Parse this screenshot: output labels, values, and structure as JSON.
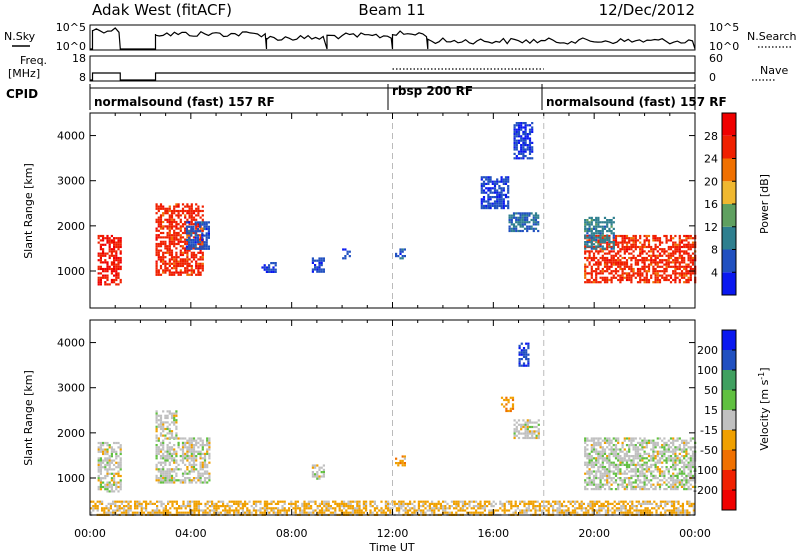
{
  "header": {
    "station": "Adak West (fitACF)",
    "beam": "Beam 11",
    "date": "12/Dec/2012"
  },
  "status_panels": {
    "nsky_label": "N.Sky",
    "nsky_ticks": [
      "10^5",
      "10^0"
    ],
    "nsearch_label": "N.Search",
    "nsearch_ticks": [
      "10^5",
      "10^0"
    ],
    "freq_label": [
      "Freq.",
      "[MHz]"
    ],
    "freq_ticks": [
      "18",
      "8"
    ],
    "nave_label": "Nave",
    "nave_ticks": [
      "60",
      "0"
    ],
    "cpid_label": "CPID",
    "cpid_segments": [
      {
        "label": "normalsound (fast) 157 RF",
        "start_hour": 0,
        "end_hour": 12
      },
      {
        "label": "rbsp 200 RF",
        "start_hour": 12,
        "end_hour": 18
      },
      {
        "label": "normalsound (fast) 157 RF",
        "start_hour": 18,
        "end_hour": 24
      }
    ]
  },
  "chart_data": [
    {
      "type": "heatmap",
      "name": "power-panel",
      "ylabel": "Slant Range [km]",
      "xlabel": "",
      "xlim": [
        0,
        24
      ],
      "ylim": [
        180,
        4500
      ],
      "yticks": [
        "1000",
        "2000",
        "3000",
        "4000"
      ],
      "colorbar": {
        "label": "Power [dB]",
        "ticks": [
          "4",
          "8",
          "12",
          "16",
          "20",
          "24",
          "28"
        ],
        "range": [
          0,
          32
        ],
        "colors": [
          "#0a18f0",
          "#2050c0",
          "#2e7f8f",
          "#5fa060",
          "#f0b830",
          "#f07000",
          "#f02000",
          "#f00000"
        ]
      },
      "regions": [
        {
          "t0": 0.3,
          "t1": 1.2,
          "r0": 700,
          "r1": 1800,
          "value": 28
        },
        {
          "t0": 2.6,
          "t1": 4.5,
          "r0": 900,
          "r1": 2500,
          "value": 26
        },
        {
          "t0": 3.8,
          "t1": 4.7,
          "r0": 1500,
          "r1": 2100,
          "value": 6
        },
        {
          "t0": 6.8,
          "t1": 7.4,
          "r0": 1000,
          "r1": 1200,
          "value": 5
        },
        {
          "t0": 8.8,
          "t1": 9.3,
          "r0": 1000,
          "r1": 1300,
          "value": 5
        },
        {
          "t0": 10.0,
          "t1": 10.3,
          "r0": 1300,
          "r1": 1500,
          "value": 5
        },
        {
          "t0": 12.1,
          "t1": 12.5,
          "r0": 1300,
          "r1": 1500,
          "value": 6
        },
        {
          "t0": 15.5,
          "t1": 16.6,
          "r0": 2400,
          "r1": 3100,
          "value": 5
        },
        {
          "t0": 16.6,
          "t1": 17.8,
          "r0": 1900,
          "r1": 2300,
          "value": 8
        },
        {
          "t0": 16.8,
          "t1": 17.5,
          "r0": 3500,
          "r1": 4300,
          "value": 4
        },
        {
          "t0": 19.6,
          "t1": 24.0,
          "r0": 750,
          "r1": 1800,
          "value": 26
        },
        {
          "t0": 19.6,
          "t1": 20.8,
          "r0": 1500,
          "r1": 2200,
          "value": 10
        }
      ]
    },
    {
      "type": "heatmap",
      "name": "velocity-panel",
      "ylabel": "Slant Range [km]",
      "xlabel": "Time UT",
      "xlim": [
        0,
        24
      ],
      "ylim": [
        180,
        4500
      ],
      "xticks": [
        "00:00",
        "04:00",
        "08:00",
        "12:00",
        "16:00",
        "20:00",
        "00:00"
      ],
      "yticks": [
        "1000",
        "2000",
        "3000",
        "4000"
      ],
      "colorbar": {
        "label": "Velocity [m s^-1]",
        "ticks": [
          "200",
          "100",
          "50",
          "15",
          "-15",
          "-50",
          "-100",
          "-200"
        ],
        "range": [
          -250,
          250
        ],
        "colors": [
          "#f00000",
          "#f02000",
          "#f07000",
          "#f0a000",
          "#c0c0c0",
          "#60c040",
          "#40a060",
          "#2050c0",
          "#0a18f0"
        ]
      },
      "regions": [
        {
          "t0": 0.3,
          "t1": 1.2,
          "r0": 700,
          "r1": 1800,
          "value": 0
        },
        {
          "t0": 2.6,
          "t1": 4.7,
          "r0": 900,
          "r1": 1900,
          "value": 0
        },
        {
          "t0": 2.6,
          "t1": 3.4,
          "r0": 1900,
          "r1": 2500,
          "value": 5
        },
        {
          "t0": 8.8,
          "t1": 9.3,
          "r0": 1000,
          "r1": 1300,
          "value": 0
        },
        {
          "t0": 12.1,
          "t1": 12.5,
          "r0": 1300,
          "r1": 1500,
          "value": -60
        },
        {
          "t0": 16.3,
          "t1": 16.8,
          "r0": 2500,
          "r1": 2800,
          "value": -70
        },
        {
          "t0": 16.8,
          "t1": 17.8,
          "r0": 1900,
          "r1": 2300,
          "value": 0
        },
        {
          "t0": 17.0,
          "t1": 17.4,
          "r0": 3500,
          "r1": 4000,
          "value": 180
        },
        {
          "t0": 19.6,
          "t1": 24.0,
          "r0": 750,
          "r1": 1900,
          "value": 5
        },
        {
          "t0": 0.0,
          "t1": 24.0,
          "r0": 200,
          "r1": 500,
          "value": -40
        }
      ]
    }
  ]
}
